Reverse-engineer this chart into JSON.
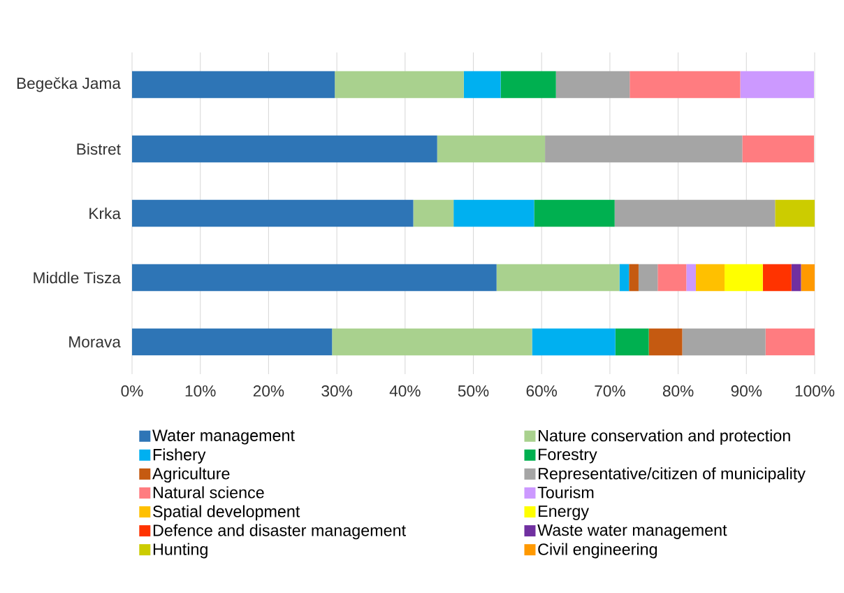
{
  "chart_data": {
    "type": "bar",
    "orientation": "horizontal",
    "stacked": true,
    "grid": "x",
    "legend": "bottom",
    "categories": [
      "Begečka Jama",
      "Bistret",
      "Krka",
      "Middle Tisza",
      "Morava"
    ],
    "xlim": [
      0,
      100
    ],
    "xticks": [
      {
        "value": 0,
        "label": "0%"
      },
      {
        "value": 10,
        "label": "10%"
      },
      {
        "value": 20,
        "label": "20%"
      },
      {
        "value": 30,
        "label": "30%"
      },
      {
        "value": 40,
        "label": "40%"
      },
      {
        "value": 50,
        "label": "50%"
      },
      {
        "value": 60,
        "label": "60%"
      },
      {
        "value": 70,
        "label": "70%"
      },
      {
        "value": 80,
        "label": "80%"
      },
      {
        "value": 90,
        "label": "90%"
      },
      {
        "value": 100,
        "label": "100%"
      }
    ],
    "series": [
      {
        "name": "Water management",
        "color": "#2e75b6",
        "values": [
          29.7,
          44.7,
          41.2,
          53.4,
          29.3
        ]
      },
      {
        "name": "Nature conservation and protection",
        "color": "#a9d18e",
        "values": [
          18.9,
          15.8,
          5.9,
          18.0,
          29.3
        ]
      },
      {
        "name": "Fishery",
        "color": "#00b0f0",
        "values": [
          5.4,
          null,
          11.8,
          1.4,
          12.2
        ]
      },
      {
        "name": "Forestry",
        "color": "#00b050",
        "values": [
          8.1,
          null,
          11.8,
          null,
          4.9
        ]
      },
      {
        "name": "Agriculture",
        "color": "#c55a11",
        "values": [
          null,
          null,
          null,
          1.4,
          4.9
        ]
      },
      {
        "name": "Representative/citizen of municipality",
        "color": "#a5a5a5",
        "values": [
          10.8,
          28.9,
          23.5,
          2.8,
          12.2
        ]
      },
      {
        "name": "Natural science",
        "color": "#ff7c80",
        "values": [
          16.2,
          10.5,
          null,
          4.2,
          7.2
        ]
      },
      {
        "name": "Tourism",
        "color": "#cc99ff",
        "values": [
          10.8,
          null,
          null,
          1.4,
          null
        ]
      },
      {
        "name": "Spatial development",
        "color": "#ffc000",
        "values": [
          null,
          null,
          null,
          4.2,
          null
        ]
      },
      {
        "name": "Energy",
        "color": "#ffff00",
        "values": [
          null,
          null,
          null,
          5.6,
          null
        ]
      },
      {
        "name": "Defence and disaster management",
        "color": "#ff3300",
        "values": [
          null,
          null,
          null,
          4.2,
          null
        ]
      },
      {
        "name": "Waste water management",
        "color": "#7030a0",
        "values": [
          null,
          null,
          null,
          1.4,
          null
        ]
      },
      {
        "name": "Hunting",
        "color": "#cccc00",
        "values": [
          null,
          null,
          5.9,
          null,
          null
        ]
      },
      {
        "name": "Civil engineering",
        "color": "#ff9900",
        "values": [
          null,
          null,
          null,
          2.0,
          null
        ]
      }
    ]
  }
}
